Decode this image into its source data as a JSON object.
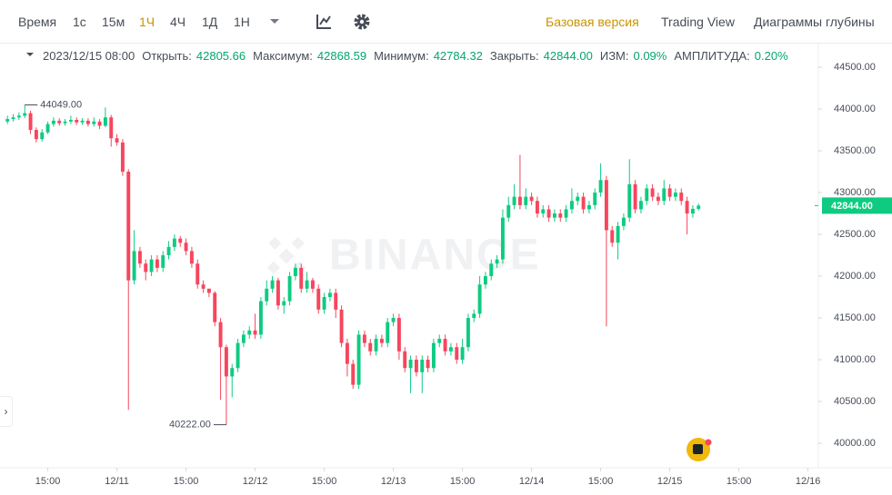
{
  "toolbar": {
    "intervals": [
      "Время",
      "1с",
      "15м",
      "1Ч",
      "4Ч",
      "1Д",
      "1Н"
    ],
    "active_interval": "1Ч",
    "views": [
      "Базовая версия",
      "Trading View",
      "Диаграммы глубины"
    ],
    "active_view": "Базовая версия"
  },
  "info": {
    "datetime": "2023/12/15 08:00",
    "items": [
      {
        "label": "Открыть:",
        "value": "42805.66"
      },
      {
        "label": "Максимум:",
        "value": "42868.59"
      },
      {
        "label": "Минимум:",
        "value": "42784.32"
      },
      {
        "label": "Закрыть:",
        "value": "42844.00"
      },
      {
        "label": "ИЗМ:",
        "value": "0.09%"
      },
      {
        "label": "АМПЛИТУДА:",
        "value": "0.20%"
      }
    ]
  },
  "chart_data": {
    "type": "candlestick",
    "watermark": "BINANCE",
    "up_color": "#0ecb81",
    "down_color": "#f6465d",
    "grid": false,
    "open": [
      43850,
      43880,
      43900,
      43920,
      43950,
      43750,
      43640,
      43720,
      43820,
      43860,
      43830,
      43850,
      43870,
      43840,
      43860,
      43820,
      43850,
      43800,
      43900,
      43650,
      43600,
      43250,
      41950,
      42300,
      42150,
      42050,
      42200,
      42100,
      42250,
      42350,
      42450,
      42400,
      42300,
      42150,
      41900,
      41850,
      41800,
      41450,
      41150,
      40800,
      40900,
      41200,
      41300,
      41350,
      41300,
      41700,
      41850,
      41950,
      41650,
      41700,
      42000,
      42100,
      41850,
      41950,
      41850,
      41600,
      41750,
      41800,
      41600,
      41200,
      40950,
      40700,
      41300,
      41200,
      41100,
      41250,
      41200,
      41450,
      41500,
      41100,
      40900,
      41000,
      40850,
      41000,
      40900,
      41200,
      41250,
      41100,
      41150,
      41000,
      41150,
      41500,
      41550,
      41900,
      42000,
      42150,
      42200,
      42700,
      42850,
      42950,
      42850,
      42950,
      42900,
      42750,
      42800,
      42700,
      42750,
      42700,
      42800,
      42900,
      42950,
      42800,
      42850,
      43000,
      43150,
      42550,
      42400,
      42600,
      42700,
      43100,
      42800,
      42900,
      43050,
      42950,
      42900,
      43050,
      42950,
      43000,
      42900,
      42750,
      42805.66
    ],
    "high": [
      43920,
      43940,
      43960,
      44049,
      43980,
      43780,
      43760,
      43850,
      43900,
      43890,
      43880,
      43920,
      43900,
      43890,
      43890,
      43900,
      43880,
      44020,
      43930,
      43700,
      43640,
      43280,
      42550,
      42350,
      42200,
      42250,
      42250,
      42300,
      42420,
      42500,
      42480,
      42450,
      42350,
      42200,
      41950,
      41850,
      41820,
      41500,
      41180,
      40950,
      41250,
      41350,
      41400,
      41550,
      41750,
      41950,
      42000,
      41980,
      41750,
      42050,
      42150,
      42150,
      42050,
      41980,
      41900,
      41800,
      41850,
      41850,
      41650,
      41250,
      41000,
      41350,
      41350,
      41250,
      41300,
      41300,
      41500,
      41550,
      41550,
      41150,
      41050,
      41050,
      41050,
      41050,
      41250,
      41300,
      41300,
      41200,
      41200,
      41250,
      41550,
      41600,
      42000,
      42050,
      42200,
      42250,
      42800,
      42950,
      43100,
      43450,
      43050,
      43000,
      42950,
      42850,
      42850,
      42800,
      42800,
      42850,
      43050,
      43000,
      43000,
      42900,
      43050,
      43350,
      43200,
      42600,
      42650,
      42750,
      43400,
      43150,
      42950,
      43100,
      43100,
      43000,
      43150,
      43100,
      43050,
      43050,
      42950,
      42850,
      42868.59
    ],
    "low": [
      43820,
      43850,
      43870,
      43890,
      43700,
      43600,
      43610,
      43700,
      43790,
      43800,
      43800,
      43820,
      43810,
      43810,
      43790,
      43790,
      43760,
      43780,
      43550,
      43560,
      43200,
      40400,
      41900,
      42100,
      41950,
      42000,
      42050,
      42050,
      42200,
      42300,
      42350,
      42250,
      42100,
      41850,
      41800,
      41750,
      41400,
      40520,
      40222,
      40550,
      40850,
      41150,
      41250,
      41250,
      41250,
      41650,
      41800,
      41600,
      41550,
      41650,
      41950,
      41800,
      41800,
      41800,
      41550,
      41550,
      41700,
      41500,
      41150,
      40800,
      40650,
      40650,
      41150,
      41050,
      41050,
      41150,
      41150,
      41400,
      41000,
      40850,
      40600,
      40800,
      40600,
      40850,
      40850,
      41150,
      41050,
      41050,
      40950,
      40950,
      41100,
      41450,
      41500,
      41850,
      41950,
      42100,
      42150,
      42650,
      42800,
      42800,
      42800,
      42850,
      42700,
      42700,
      42650,
      42650,
      42650,
      42650,
      42750,
      42850,
      42750,
      42750,
      42800,
      42950,
      41400,
      42350,
      42200,
      42550,
      42650,
      42750,
      42750,
      42850,
      42900,
      42850,
      42850,
      42900,
      42900,
      42850,
      42500,
      42700,
      42784.32
    ],
    "close": [
      43880,
      43900,
      43920,
      43950,
      43750,
      43640,
      43720,
      43820,
      43860,
      43830,
      43850,
      43870,
      43840,
      43860,
      43820,
      43850,
      43800,
      43900,
      43650,
      43600,
      43250,
      41950,
      42300,
      42150,
      42050,
      42200,
      42100,
      42250,
      42350,
      42450,
      42400,
      42300,
      42150,
      41900,
      41850,
      41800,
      41450,
      41150,
      40800,
      40900,
      41200,
      41300,
      41350,
      41300,
      41700,
      41850,
      41950,
      41650,
      41700,
      42000,
      42100,
      41850,
      41950,
      41850,
      41600,
      41750,
      41800,
      41600,
      41200,
      40950,
      40700,
      41300,
      41200,
      41100,
      41250,
      41200,
      41450,
      41500,
      41100,
      40900,
      41000,
      40850,
      41000,
      40900,
      41200,
      41250,
      41100,
      41150,
      41000,
      41150,
      41500,
      41550,
      41900,
      42000,
      42150,
      42200,
      42700,
      42850,
      42950,
      42850,
      42950,
      42900,
      42750,
      42800,
      42700,
      42750,
      42700,
      42800,
      42900,
      42950,
      42800,
      42850,
      43000,
      43150,
      42550,
      42400,
      42600,
      42700,
      43100,
      42800,
      42900,
      43050,
      42950,
      42900,
      43050,
      42950,
      43000,
      42900,
      42750,
      42805.66,
      42844
    ],
    "annotations": [
      {
        "text": "44049.00",
        "value": 44049
      },
      {
        "text": "40222.00",
        "value": 40222
      }
    ],
    "last_price_label": "42844.00",
    "xlim": [
      -1.3,
      140.8
    ],
    "xticks": [
      {
        "value": 7,
        "label": "15:00"
      },
      {
        "value": 19,
        "label": "12/11"
      },
      {
        "value": 31,
        "label": "15:00"
      },
      {
        "value": 43,
        "label": "12/12"
      },
      {
        "value": 55,
        "label": "15:00"
      },
      {
        "value": 67,
        "label": "12/13"
      },
      {
        "value": 79,
        "label": "15:00"
      },
      {
        "value": 91,
        "label": "12/14"
      },
      {
        "value": 103,
        "label": "15:00"
      },
      {
        "value": 115,
        "label": "12/15"
      },
      {
        "value": 127,
        "label": "15:00"
      },
      {
        "value": 139,
        "label": "12/16"
      }
    ],
    "ylim": [
      39707,
      44783
    ],
    "yticks": [
      {
        "value": 40000,
        "label": "40000.00"
      },
      {
        "value": 40500,
        "label": "40500.00"
      },
      {
        "value": 41000,
        "label": "41000.00"
      },
      {
        "value": 41500,
        "label": "41500.00"
      },
      {
        "value": 42000,
        "label": "42000.00"
      },
      {
        "value": 42500,
        "label": "42500.00"
      },
      {
        "value": 43000,
        "label": "43000.00"
      },
      {
        "value": 43500,
        "label": "43500.00"
      },
      {
        "value": 44000,
        "label": "44000.00"
      },
      {
        "value": 44500,
        "label": "44500.00"
      }
    ]
  }
}
